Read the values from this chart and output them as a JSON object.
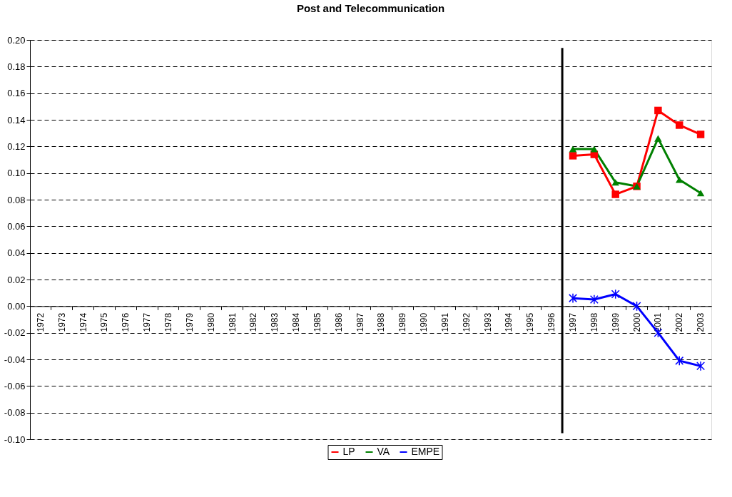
{
  "chart_data": {
    "type": "line",
    "title": "Post and Telecommunication",
    "categories": [
      "1972",
      "1973",
      "1974",
      "1975",
      "1976",
      "1977",
      "1978",
      "1979",
      "1980",
      "1981",
      "1982",
      "1983",
      "1984",
      "1985",
      "1986",
      "1987",
      "1988",
      "1989",
      "1990",
      "1991",
      "1992",
      "1993",
      "1994",
      "1995",
      "1996",
      "1997",
      "1998",
      "1999",
      "2000",
      "2001",
      "2002",
      "2003"
    ],
    "series": [
      {
        "name": "LP",
        "color": "#ff0000",
        "marker": "square",
        "values": [
          null,
          null,
          null,
          null,
          null,
          null,
          null,
          null,
          null,
          null,
          null,
          null,
          null,
          null,
          null,
          null,
          null,
          null,
          null,
          null,
          null,
          null,
          null,
          null,
          null,
          0.113,
          0.114,
          0.084,
          0.09,
          0.147,
          0.136,
          0.129
        ]
      },
      {
        "name": "VA",
        "color": "#008000",
        "marker": "triangle",
        "values": [
          null,
          null,
          null,
          null,
          null,
          null,
          null,
          null,
          null,
          null,
          null,
          null,
          null,
          null,
          null,
          null,
          null,
          null,
          null,
          null,
          null,
          null,
          null,
          null,
          null,
          0.118,
          0.118,
          0.093,
          0.09,
          0.126,
          0.095,
          0.085
        ]
      },
      {
        "name": "EMPE",
        "color": "#0000ff",
        "marker": "cross",
        "values": [
          null,
          null,
          null,
          null,
          null,
          null,
          null,
          null,
          null,
          null,
          null,
          null,
          null,
          null,
          null,
          null,
          null,
          null,
          null,
          null,
          null,
          null,
          null,
          null,
          null,
          0.006,
          0.005,
          0.009,
          0.0,
          -0.02,
          -0.041,
          -0.045
        ]
      }
    ],
    "ylim": [
      -0.1,
      0.2
    ],
    "yticks": [
      {
        "value": -0.1,
        "label": "-0.10"
      },
      {
        "value": -0.08,
        "label": "-0.08"
      },
      {
        "value": -0.06,
        "label": "-0.06"
      },
      {
        "value": -0.04,
        "label": "-0.04"
      },
      {
        "value": -0.02,
        "label": "-0.02"
      },
      {
        "value": 0,
        "label": "0.00"
      },
      {
        "value": 0.02,
        "label": "0.02"
      },
      {
        "value": 0.04,
        "label": "0.04"
      },
      {
        "value": 0.06,
        "label": "0.06"
      },
      {
        "value": 0.08,
        "label": "0.08"
      },
      {
        "value": 0.1,
        "label": "0.10"
      },
      {
        "value": 0.12,
        "label": "0.12"
      },
      {
        "value": 0.14,
        "label": "0.14"
      },
      {
        "value": 0.16,
        "label": "0.16"
      },
      {
        "value": 0.18,
        "label": "0.18"
      },
      {
        "value": 0.2,
        "label": "0.20"
      }
    ],
    "ref_lines": [
      {
        "axis": "x",
        "value": "1997",
        "color": "#000000",
        "line_style": "solid"
      }
    ],
    "grid": "y",
    "legend": "bottom",
    "line_style": "solid"
  }
}
